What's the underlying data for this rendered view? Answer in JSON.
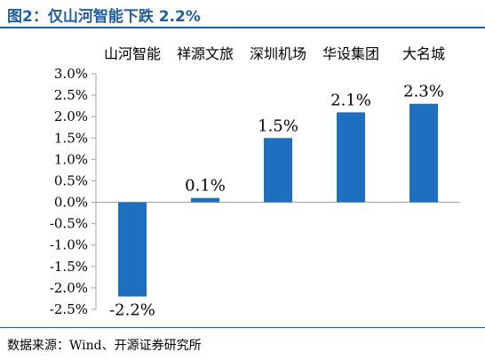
{
  "figure_title": "图2：仅山河智能下跌 2.2%",
  "source_note": "数据来源：Wind、开源证券研究所",
  "chart_data": {
    "type": "bar",
    "categories": [
      "山河智能",
      "祥源文旅",
      "深圳机场",
      "华设集团",
      "大名城"
    ],
    "values": [
      -2.2,
      0.1,
      1.5,
      2.1,
      2.3
    ],
    "data_labels": [
      "-2.2%",
      "0.1%",
      "1.5%",
      "2.1%",
      "2.3%"
    ],
    "y_ticks": [
      "3.0%",
      "2.5%",
      "2.0%",
      "1.5%",
      "1.0%",
      "0.5%",
      "0.0%",
      "-0.5%",
      "-1.0%",
      "-1.5%",
      "-2.0%",
      "-2.5%"
    ],
    "ylim": [
      -2.5,
      3.0
    ],
    "category_label_position": "top",
    "grid": false,
    "bar_color": "#1f6fc0",
    "axis_color": "#a0a0a0"
  }
}
